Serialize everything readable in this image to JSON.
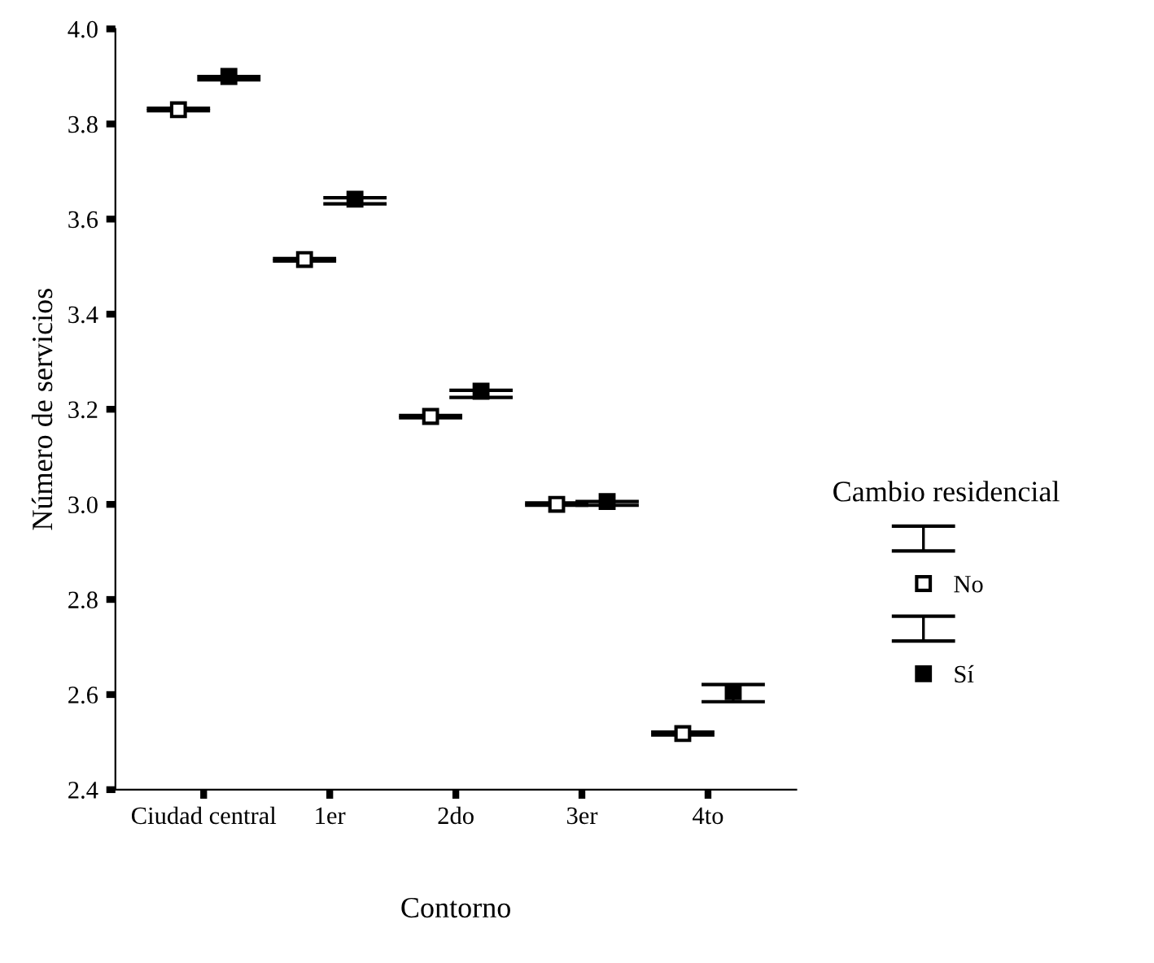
{
  "chart_data": {
    "type": "scatter",
    "xlabel": "Contorno",
    "ylabel": "Número de servicios",
    "legend_title": "Cambio residencial",
    "categories": [
      "Ciudad central",
      "1er",
      "2do",
      "3er",
      "4to"
    ],
    "series": [
      {
        "name": "No",
        "color": "#000000",
        "marker": "square",
        "values": [
          3.83,
          3.515,
          3.185,
          3.0,
          2.518
        ],
        "errors": [
          [
            3.828,
            3.833
          ],
          [
            3.512,
            3.517
          ],
          [
            3.182,
            3.187
          ],
          [
            2.998,
            3.003
          ],
          [
            2.515,
            2.521
          ]
        ]
      },
      {
        "name": "Sí",
        "color": "#000000",
        "marker": "square",
        "values": [
          3.9,
          3.642,
          3.238,
          3.006,
          2.606
        ],
        "errors": [
          [
            3.893,
            3.9
          ],
          [
            3.632,
            3.645
          ],
          [
            3.225,
            3.24
          ],
          [
            2.998,
            3.006
          ],
          [
            2.585,
            2.621
          ]
        ]
      }
    ],
    "ylim": [
      2.4,
      4.0
    ],
    "yticks": [
      {
        "value": 2.4,
        "label": "2.4"
      },
      {
        "value": 2.6,
        "label": "2.6"
      },
      {
        "value": 2.8,
        "label": "2.8"
      },
      {
        "value": 3.0,
        "label": "3.0"
      },
      {
        "value": 3.2,
        "label": "3.2"
      },
      {
        "value": 3.4,
        "label": "3.4"
      },
      {
        "value": 3.6,
        "label": "3.6"
      },
      {
        "value": 3.8,
        "label": "3.8"
      },
      {
        "value": 4.0,
        "label": "4.0"
      }
    ],
    "grid": false,
    "legend": "right"
  }
}
